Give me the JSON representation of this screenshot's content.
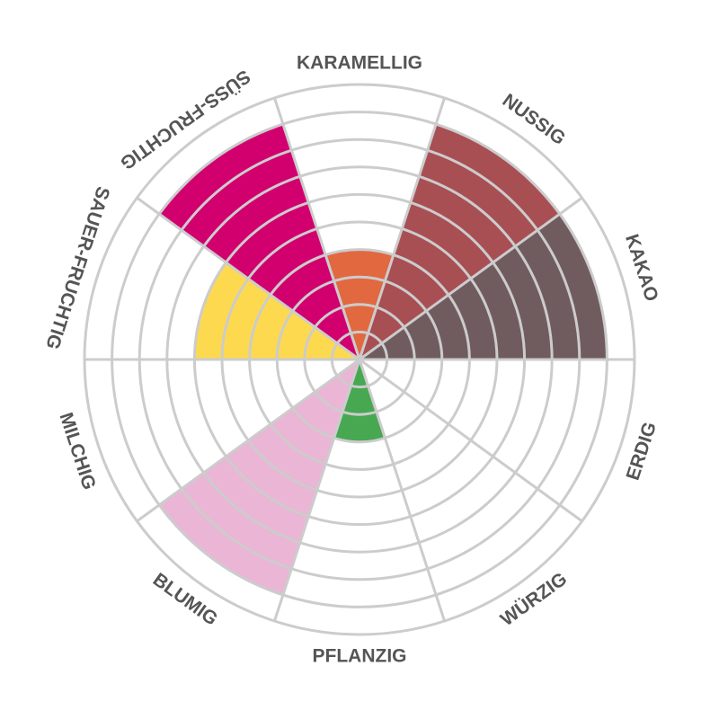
{
  "chart_data": {
    "type": "polar-area",
    "title": "",
    "rings": 10,
    "max": 10,
    "categories": [
      "KARAMELLIG",
      "NUSSIG",
      "KAKAO",
      "ERDIG",
      "WÜRZIG",
      "PFLANZIG",
      "BLUMIG",
      "MILCHIG",
      "SAUER-FRUCHTIG",
      "SÜSS-FRUCHTIG"
    ],
    "values": [
      4,
      9,
      9,
      0,
      0,
      3,
      9,
      0,
      6,
      9
    ],
    "colors": [
      "#E26840",
      "#A84F54",
      "#705C5E",
      "#FFFFFF",
      "#FFFFFF",
      "#47A851",
      "#EBB5D5",
      "#FFFFFF",
      "#FDD94F",
      "#D2006F"
    ],
    "grid_color": "#CCCCCC",
    "label_color": "#555555"
  }
}
